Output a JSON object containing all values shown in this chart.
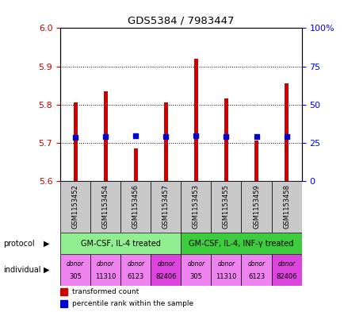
{
  "title": "GDS5384 / 7983447",
  "samples": [
    "GSM1153452",
    "GSM1153454",
    "GSM1153456",
    "GSM1153457",
    "GSM1153453",
    "GSM1153455",
    "GSM1153459",
    "GSM1153458"
  ],
  "red_values": [
    5.805,
    5.835,
    5.685,
    5.805,
    5.92,
    5.815,
    5.705,
    5.855
  ],
  "blue_values": [
    5.715,
    5.717,
    5.718,
    5.716,
    5.718,
    5.716,
    5.716,
    5.716
  ],
  "ymin": 5.6,
  "ymax": 6.0,
  "yticks_left": [
    5.6,
    5.7,
    5.8,
    5.9,
    6.0
  ],
  "yticks_right_pct": [
    0,
    25,
    50,
    75,
    100
  ],
  "yticks_right_labels": [
    "0",
    "25",
    "50",
    "75",
    "100%"
  ],
  "protocol_groups": [
    {
      "label": "GM-CSF, IL-4 treated",
      "start": 0,
      "end": 4,
      "color": "#90EE90"
    },
    {
      "label": "GM-CSF, IL-4, INF-γ treated",
      "start": 4,
      "end": 8,
      "color": "#3DCC3D"
    }
  ],
  "individuals": [
    {
      "label": "donor\n305",
      "col": 0,
      "color": "#EE82EE"
    },
    {
      "label": "donor\n11310",
      "col": 1,
      "color": "#EE82EE"
    },
    {
      "label": "donor\n6123",
      "col": 2,
      "color": "#EE82EE"
    },
    {
      "label": "donor\n82406",
      "col": 3,
      "color": "#DD44DD"
    },
    {
      "label": "donor\n305",
      "col": 4,
      "color": "#EE82EE"
    },
    {
      "label": "donor\n11310",
      "col": 5,
      "color": "#EE82EE"
    },
    {
      "label": "donor\n6123",
      "col": 6,
      "color": "#EE82EE"
    },
    {
      "label": "donor\n82406",
      "col": 7,
      "color": "#DD44DD"
    }
  ],
  "bar_bottom": 5.6,
  "red_color": "#CC0000",
  "blue_color": "#0000CC",
  "sample_bg": "#C8C8C8",
  "bar_width": 0.13
}
